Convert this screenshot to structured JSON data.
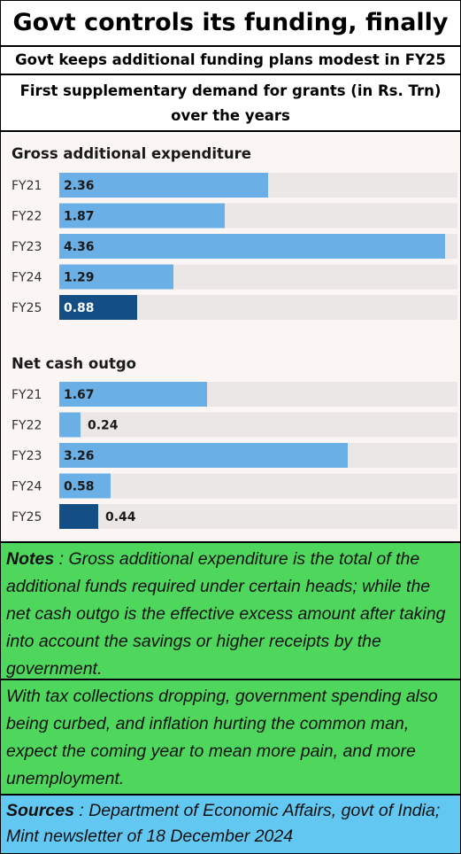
{
  "header": {
    "title": "Govt controls its funding, finally",
    "subtitle": "Govt keeps additional funding plans modest in FY25",
    "caption": "First supplementary demand for grants (in Rs. Trn) over the years"
  },
  "chart_data": [
    {
      "type": "bar",
      "orientation": "horizontal",
      "title": "Gross additional expenditure",
      "categories": [
        "FY21",
        "FY22",
        "FY23",
        "FY24",
        "FY25"
      ],
      "values": [
        2.36,
        1.87,
        4.36,
        1.29,
        0.88
      ],
      "value_labels": [
        "2.36",
        "1.87",
        "4.36",
        "1.29",
        "0.88"
      ],
      "highlight_category": "FY25",
      "xlim": [
        0,
        4.5
      ],
      "grid": false
    },
    {
      "type": "bar",
      "orientation": "horizontal",
      "title": "Net cash outgo",
      "categories": [
        "FY21",
        "FY22",
        "FY23",
        "FY24",
        "FY25"
      ],
      "values": [
        1.67,
        0.24,
        3.26,
        0.58,
        0.44
      ],
      "value_labels": [
        "1.67",
        "0.24",
        "3.26",
        "0.58",
        "0.44"
      ],
      "highlight_category": "FY25",
      "xlim": [
        0,
        4.5
      ],
      "grid": false
    }
  ],
  "colors": {
    "bar": "#6aafe6",
    "bar_highlight": "#134e85",
    "track": "#ece7e7",
    "chart_bg": "#fbf5f4",
    "notes_bg": "#4fd65c",
    "sources_bg": "#62c8f2"
  },
  "notes": {
    "label": "Notes",
    "text": " : Gross additional expenditure is the total of the additional funds required under certain heads; while the net cash outgo is the effective excess amount after taking into account the savings or higher receipts by the government."
  },
  "outlook": {
    "text": "With tax collections dropping, government spending also being curbed, and inflation hurting the common man, expect the coming year to mean more pain, and more unemployment."
  },
  "sources": {
    "label": "Sources",
    "text": " : Department of Economic Affairs, govt of India; Mint newsletter of 18 December 2024"
  }
}
